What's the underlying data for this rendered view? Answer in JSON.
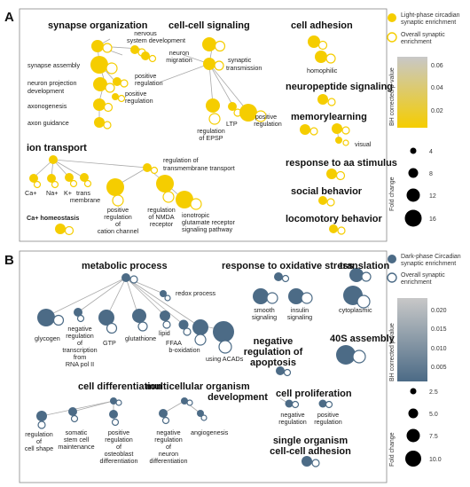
{
  "panels": [
    {
      "letter": "A",
      "headers": [
        "synapse organization",
        "cell-cell signaling",
        "cell adhesion",
        "neuropeptide signaling",
        "memory",
        "learning",
        "ion transport",
        "response to aa stimulus",
        "social behavior",
        "locomotory behavior"
      ],
      "labels": [
        [
          "nervous",
          "system development"
        ],
        [
          "neuron",
          "migration"
        ],
        [
          "synapse assembly"
        ],
        [
          "positive",
          "regulation"
        ],
        [
          "neuron projection",
          "development"
        ],
        [
          "positive",
          "regulation"
        ],
        [
          "axonogenesis"
        ],
        [
          "axon guidance"
        ],
        [
          "synaptic",
          "transmission"
        ],
        [
          "homophilic"
        ],
        [
          "regulation",
          "of EPSP"
        ],
        [
          "LTP"
        ],
        [
          "positive",
          "regulation"
        ],
        [
          "visual"
        ],
        [
          "regulation  of",
          "transmembrane transport"
        ],
        [
          "Ca+"
        ],
        [
          "Na+"
        ],
        [
          "K+"
        ],
        [
          "trans",
          "membrane"
        ],
        [
          "positive",
          "regulation",
          "of",
          "cation channel"
        ],
        [
          "regulation",
          "of NMDA",
          "receptor"
        ],
        [
          "ionotropic",
          "glutamate receptor",
          "signaling pathway"
        ],
        [
          "Ca+ homeostasis"
        ]
      ],
      "legend": {
        "filled_label": [
          "Light-phase circadian",
          "synaptic enrichment"
        ],
        "open_label": [
          "Overall synaptic",
          "enrichment"
        ],
        "colorbar_title": "BH corrected p-value",
        "colorbar_ticks": [
          "0.06",
          "0.04",
          "0.02"
        ],
        "size_title": "Fold change",
        "size_ticks": [
          "4",
          "8",
          "12",
          "16"
        ]
      }
    },
    {
      "letter": "B",
      "headers": [
        "metabolic process",
        "response to oxidative stress",
        "translation",
        "negative",
        "regulation of",
        "apoptosis",
        "40S assembly",
        "cell differentiation",
        "multicellular organism",
        "development",
        "cell proliferation",
        "single organism",
        "cell-cell adhesion"
      ],
      "labels": [
        [
          "redox process"
        ],
        [
          "glycogen"
        ],
        [
          "negative",
          "regulation",
          "of",
          "transcription",
          "from",
          "RNA pol II"
        ],
        [
          "GTP"
        ],
        [
          "glutathione"
        ],
        [
          "lipid"
        ],
        [
          "FFAA",
          "b-oxidation"
        ],
        [
          "using ACADs"
        ],
        [
          "smooth",
          "signaling"
        ],
        [
          "insulin",
          "signaling"
        ],
        [
          "cytoplasmic"
        ],
        [
          "regulation",
          "of",
          "cell shape"
        ],
        [
          "somatic",
          "stem cell",
          "maintenance"
        ],
        [
          "positive",
          "regulation",
          "of",
          "osteoblast",
          "differentiation"
        ],
        [
          "negative",
          "regulation",
          "of",
          "neuron",
          "differentiation"
        ],
        [
          "angiogenesis"
        ],
        [
          "negative",
          "regulation"
        ],
        [
          "positive",
          "regulation"
        ]
      ],
      "legend": {
        "filled_label": [
          "Dark-phase Circadian",
          "synaptic enrichment"
        ],
        "open_label": [
          "Overall synaptic",
          "enrichment"
        ],
        "colorbar_title": "BH corrected p-value",
        "colorbar_ticks": [
          "0.020",
          "0.015",
          "0.010",
          "0.005"
        ],
        "size_title": "Fold change",
        "size_ticks": [
          "2.5",
          "5.0",
          "7.5",
          "10.0"
        ]
      }
    }
  ],
  "colors": {
    "light_phase": "#f5cd00",
    "dark_phase": "#4c6b86",
    "edge": "#a9a9a9",
    "colorbar_A": [
      "#f5cd00",
      "#c8c8c8"
    ],
    "colorbar_B": [
      "#4c6b86",
      "#c8c8c8"
    ]
  }
}
